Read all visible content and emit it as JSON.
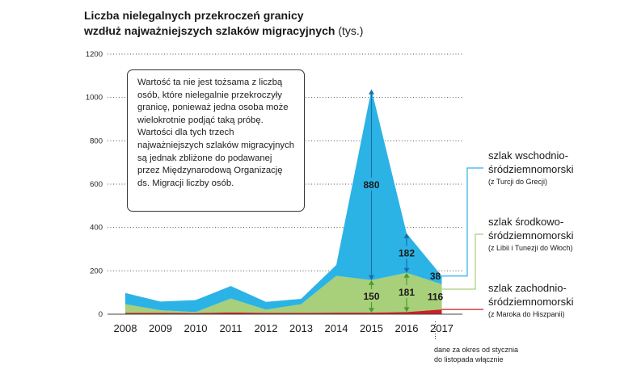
{
  "title": {
    "line1": "Liczba nielegalnych przekroczeń granicy",
    "line2_bold": "wzdłuż najważniejszych szlaków migracyjnych",
    "line2_unit": "(tys.)"
  },
  "note": "Wartość ta nie jest tożsama z liczbą osób, które nielegalnie przekroczyły granicę, ponieważ jedna osoba może wielokrotnie podjąć taką próbę. Wartości dla tych trzech najważniejszych szlaków migracyjnych są jednak zbliżone do podawanej przez Międzynarodową Organizację ds. Migracji liczby osób.",
  "legend": {
    "east": {
      "line1": "szlak wschodnio-",
      "line2": "śródziemnomorski",
      "sub": "(z Turcji do Grecji)"
    },
    "central": {
      "line1": "szlak środkowo-",
      "line2": "śródziemnomorski",
      "sub": "(z Libii i Tunezji do Włoch)"
    },
    "west": {
      "line1": "szlak zachodnio-",
      "line2": "śródziemnomorski",
      "sub": "(z Maroka do Hiszpanii)"
    }
  },
  "footnote": {
    "line1": "dane za okres od stycznia",
    "line2": "do listopada włącznie"
  },
  "chart_data": {
    "type": "area",
    "stacked": true,
    "x": [
      "2008",
      "2009",
      "2010",
      "2011",
      "2012",
      "2013",
      "2014",
      "2015",
      "2016",
      "2017"
    ],
    "ylim": [
      0,
      1200
    ],
    "yticks": [
      "0",
      "200",
      "400",
      "600",
      "800",
      "1000",
      "1200"
    ],
    "grid": true,
    "series": [
      {
        "name": "szlak zachodnio-śródziemnomorski",
        "color": "#cc1f27",
        "values": [
          6,
          6,
          5,
          8,
          6,
          6,
          7,
          7,
          10,
          22
        ]
      },
      {
        "name": "szlak środkowo-śródziemnomorski",
        "color": "#a8cf7a",
        "values": [
          40,
          12,
          5,
          64,
          15,
          40,
          170,
          150,
          181,
          116
        ]
      },
      {
        "name": "szlak wschodnio-śródziemnomorski",
        "color": "#2bb3e6",
        "values": [
          52,
          40,
          55,
          58,
          36,
          25,
          50,
          880,
          182,
          38
        ]
      }
    ],
    "annotations": [
      {
        "label": "880",
        "x": "2015",
        "series": "szlak wschodnio-śródziemnomorski"
      },
      {
        "label": "150",
        "x": "2015",
        "series": "szlak środkowo-śródziemnomorski"
      },
      {
        "label": "182",
        "x": "2016",
        "series": "szlak wschodnio-śródziemnomorski"
      },
      {
        "label": "181",
        "x": "2016",
        "series": "szlak środkowo-śródziemnomorski"
      },
      {
        "label": "38",
        "x": "2017",
        "series": "szlak wschodnio-śródziemnomorski"
      },
      {
        "label": "116",
        "x": "2017",
        "series": "szlak środkowo-śródziemnomorski"
      }
    ]
  },
  "colors": {
    "east": "#2bb3e6",
    "central": "#a8cf7a",
    "west": "#cc1f27",
    "arrow_east": "#1a6fa6",
    "arrow_central": "#4a9e2e"
  }
}
